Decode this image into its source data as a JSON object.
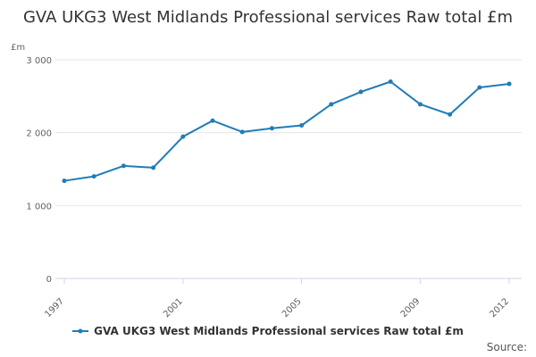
{
  "chart_data": {
    "type": "line",
    "title": "GVA UKG3 West Midlands Professional services Raw total £m",
    "ylabel": "£m",
    "xlabel": "",
    "x": [
      1997,
      1998,
      1999,
      2000,
      2001,
      2002,
      2003,
      2004,
      2005,
      2006,
      2007,
      2008,
      2009,
      2010,
      2011,
      2012
    ],
    "xtick_labels": [
      "1997",
      "2001",
      "2005",
      "2009",
      "2012"
    ],
    "ylim": [
      0,
      3000
    ],
    "yticks": [
      0,
      1000,
      2000,
      3000
    ],
    "ytick_labels": [
      "0",
      "1 000",
      "2 000",
      "3 000"
    ],
    "grid": true,
    "legend": "bottom",
    "series": [
      {
        "name": "GVA UKG3 West Midlands Professional services Raw total £m",
        "color": "#1f7db7",
        "values": [
          1340,
          1400,
          1545,
          1520,
          1945,
          2165,
          2010,
          2060,
          2100,
          2390,
          2560,
          2700,
          2390,
          2250,
          2620,
          2670
        ]
      }
    ]
  },
  "footer": {
    "source_label": "Source:"
  }
}
